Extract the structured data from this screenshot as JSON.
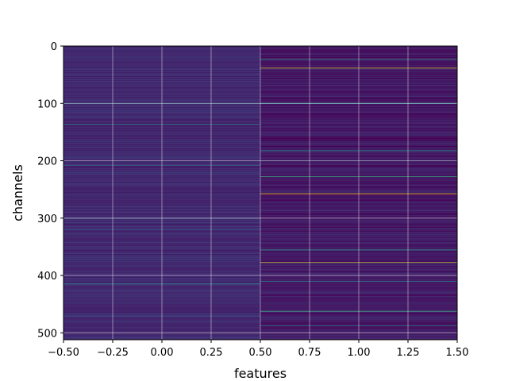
{
  "chart_data": {
    "type": "heatmap",
    "title": "",
    "xlabel": "features",
    "ylabel": "channels",
    "xlim": [
      -0.5,
      1.5
    ],
    "ylim": [
      512,
      0
    ],
    "y_inverted": true,
    "grid": true,
    "colormap": "viridis",
    "columns": [
      0,
      1
    ],
    "rows": 512,
    "x_ticks": [
      -0.5,
      -0.25,
      0.0,
      0.25,
      0.5,
      0.75,
      1.0,
      1.25,
      1.5
    ],
    "x_tick_labels": [
      "−0.50",
      "−0.25",
      "0.00",
      "0.25",
      "0.50",
      "0.75",
      "1.00",
      "1.25",
      "1.50"
    ],
    "y_ticks": [
      0,
      100,
      200,
      300,
      400,
      500
    ],
    "y_tick_labels": [
      "0",
      "100",
      "200",
      "300",
      "400",
      "500"
    ],
    "column_0_bright_rows": [
      {
        "row": 100,
        "value": 0.35
      },
      {
        "row": 136,
        "value": 0.45
      },
      {
        "row": 208,
        "value": 0.3
      },
      {
        "row": 300,
        "value": 0.3
      },
      {
        "row": 320,
        "value": 0.3
      },
      {
        "row": 414,
        "value": 0.4
      },
      {
        "row": 470,
        "value": 0.3
      }
    ],
    "column_1_bright_rows": [
      {
        "row": 22,
        "value": 0.55
      },
      {
        "row": 38,
        "value": 0.95
      },
      {
        "row": 100,
        "value": 0.5
      },
      {
        "row": 182,
        "value": 0.5
      },
      {
        "row": 227,
        "value": 0.6
      },
      {
        "row": 257,
        "value": 1.0
      },
      {
        "row": 355,
        "value": 0.55
      },
      {
        "row": 377,
        "value": 0.9
      },
      {
        "row": 410,
        "value": 0.45
      },
      {
        "row": 462,
        "value": 0.6
      },
      {
        "row": 487,
        "value": 0.45
      }
    ]
  }
}
